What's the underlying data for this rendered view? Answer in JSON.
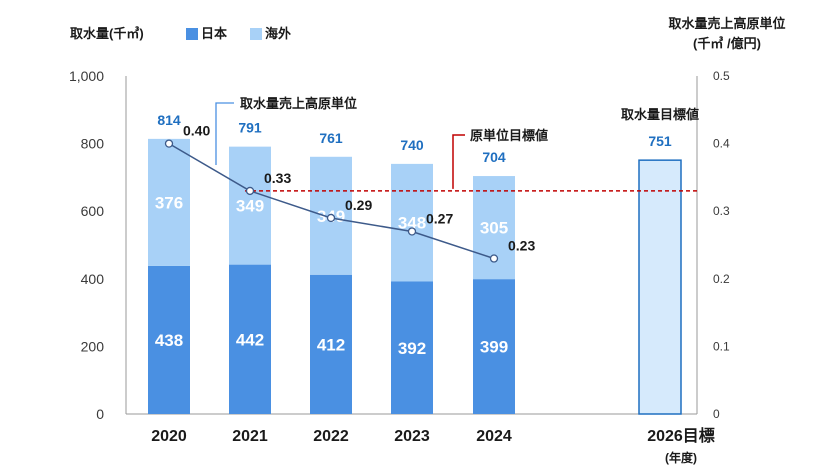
{
  "chart_data": {
    "type": "bar",
    "stacked": true,
    "categories": [
      "2020",
      "2021",
      "2022",
      "2023",
      "2024"
    ],
    "target_category": "2026目標",
    "series": [
      {
        "name": "日本",
        "color": "#4a90e2",
        "values": [
          438,
          442,
          412,
          392,
          399
        ]
      },
      {
        "name": "海外",
        "color": "#a8d1f7",
        "values": [
          376,
          349,
          349,
          348,
          305
        ]
      }
    ],
    "totals": [
      814,
      791,
      761,
      740,
      704
    ],
    "target": {
      "label": "取水量目標値",
      "value": 751
    },
    "line": {
      "name": "取水量売上高原単位",
      "values": [
        0.4,
        0.33,
        0.29,
        0.27,
        0.23
      ],
      "labels": [
        "0.40",
        "0.33",
        "0.29",
        "0.27",
        "0.23"
      ]
    },
    "target_line": {
      "name": "原単位目標値",
      "value": 0.33
    },
    "left_axis": {
      "title": "取水量(千㎥)",
      "min": 0,
      "max": 1000,
      "ticks": [
        "0",
        "200",
        "400",
        "600",
        "800",
        "1,000"
      ]
    },
    "right_axis": {
      "title_line1": "取水量売上高原単位",
      "title_line2": "(千㎥ /億円)",
      "min": 0,
      "max": 0.5,
      "ticks": [
        "0",
        "0.1",
        "0.2",
        "0.3",
        "0.4",
        "0.5"
      ]
    },
    "xlabel": "(年度)",
    "colors": {
      "japan": "#4a90e2",
      "overseas": "#a8d1f7",
      "line": "#3d5a8a",
      "target_line": "#c00000",
      "target_bar_fill": "#d6eafc",
      "target_bar_stroke": "#1f6fc0"
    }
  }
}
